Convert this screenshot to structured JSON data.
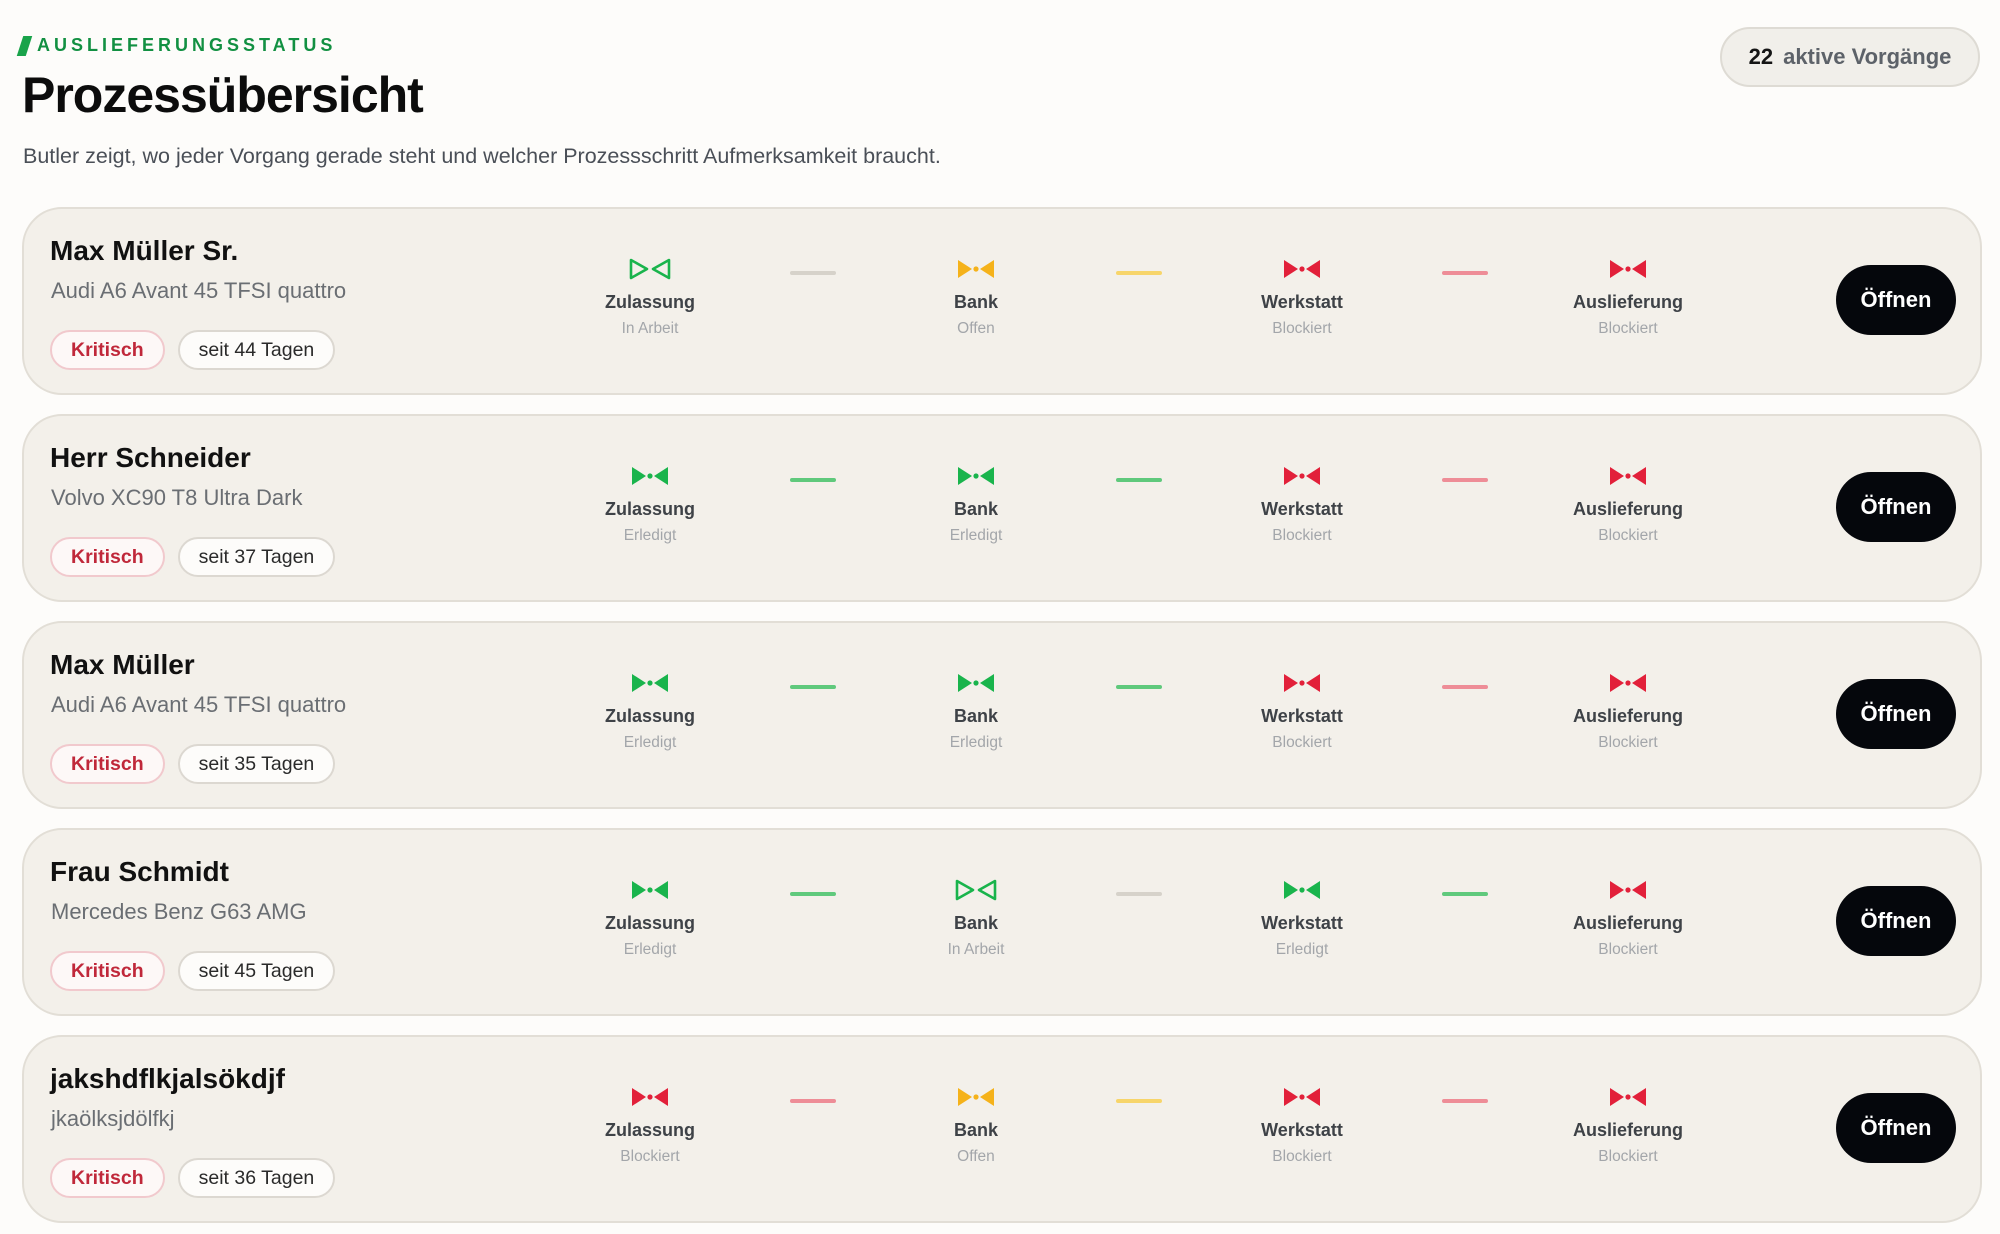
{
  "header": {
    "eyebrow": "AUSLIEFERUNGSSTATUS",
    "title": "Prozessübersicht",
    "subtitle": "Butler zeigt, wo jeder Vorgang gerade steht und welcher Prozessschritt Aufmerksamkeit braucht.",
    "active_count": "22",
    "active_label": "aktive Vorgänge"
  },
  "status_colors": {
    "in_progress": "#19b44c",
    "done": "#19b44c",
    "open": "#f5b21a",
    "blocked": "#e2203a"
  },
  "connector_colors": {
    "neutral": "#d6d2ca",
    "green": "#5fc97c",
    "yellow": "#f7d56a",
    "red": "#ee8d97"
  },
  "steps": [
    "Zulassung",
    "Bank",
    "Werkstatt",
    "Auslieferung"
  ],
  "cards": [
    {
      "name": "Max Müller Sr.",
      "vehicle": "Audi A6 Avant 45 TFSI quattro",
      "badge_critical": "Kritisch",
      "badge_age": "seit 44 Tagen",
      "button": "Öffnen",
      "statuses": [
        {
          "label": "In Arbeit",
          "kind": "in_progress",
          "icon": "bowtie-outline-icon"
        },
        {
          "label": "Offen",
          "kind": "open",
          "icon": "bowtie-icon"
        },
        {
          "label": "Blockiert",
          "kind": "blocked",
          "icon": "bowtie-icon"
        },
        {
          "label": "Blockiert",
          "kind": "blocked",
          "icon": "bowtie-icon"
        }
      ],
      "connectors": [
        "neutral",
        "yellow",
        "red"
      ]
    },
    {
      "name": "Herr Schneider",
      "vehicle": "Volvo XC90 T8 Ultra Dark",
      "badge_critical": "Kritisch",
      "badge_age": "seit 37 Tagen",
      "button": "Öffnen",
      "statuses": [
        {
          "label": "Erledigt",
          "kind": "done",
          "icon": "bowtie-icon"
        },
        {
          "label": "Erledigt",
          "kind": "done",
          "icon": "bowtie-icon"
        },
        {
          "label": "Blockiert",
          "kind": "blocked",
          "icon": "bowtie-icon"
        },
        {
          "label": "Blockiert",
          "kind": "blocked",
          "icon": "bowtie-icon"
        }
      ],
      "connectors": [
        "green",
        "green",
        "red"
      ]
    },
    {
      "name": "Max Müller",
      "vehicle": "Audi A6 Avant 45 TFSI quattro",
      "badge_critical": "Kritisch",
      "badge_age": "seit 35 Tagen",
      "button": "Öffnen",
      "statuses": [
        {
          "label": "Erledigt",
          "kind": "done",
          "icon": "bowtie-icon"
        },
        {
          "label": "Erledigt",
          "kind": "done",
          "icon": "bowtie-icon"
        },
        {
          "label": "Blockiert",
          "kind": "blocked",
          "icon": "bowtie-icon"
        },
        {
          "label": "Blockiert",
          "kind": "blocked",
          "icon": "bowtie-icon"
        }
      ],
      "connectors": [
        "green",
        "green",
        "red"
      ]
    },
    {
      "name": "Frau Schmidt",
      "vehicle": "Mercedes Benz G63 AMG",
      "badge_critical": "Kritisch",
      "badge_age": "seit 45 Tagen",
      "button": "Öffnen",
      "statuses": [
        {
          "label": "Erledigt",
          "kind": "done",
          "icon": "bowtie-icon"
        },
        {
          "label": "In Arbeit",
          "kind": "in_progress",
          "icon": "bowtie-outline-icon"
        },
        {
          "label": "Erledigt",
          "kind": "done",
          "icon": "bowtie-icon"
        },
        {
          "label": "Blockiert",
          "kind": "blocked",
          "icon": "bowtie-icon"
        }
      ],
      "connectors": [
        "green",
        "neutral",
        "green"
      ]
    },
    {
      "name": "jakshdflkjalsökdjf",
      "vehicle": "jkaölksjdölfkj",
      "badge_critical": "Kritisch",
      "badge_age": "seit 36 Tagen",
      "button": "Öffnen",
      "statuses": [
        {
          "label": "Blockiert",
          "kind": "blocked",
          "icon": "bowtie-icon"
        },
        {
          "label": "Offen",
          "kind": "open",
          "icon": "bowtie-icon"
        },
        {
          "label": "Blockiert",
          "kind": "blocked",
          "icon": "bowtie-icon"
        },
        {
          "label": "Blockiert",
          "kind": "blocked",
          "icon": "bowtie-icon"
        }
      ],
      "connectors": [
        "red",
        "yellow",
        "red"
      ]
    }
  ]
}
